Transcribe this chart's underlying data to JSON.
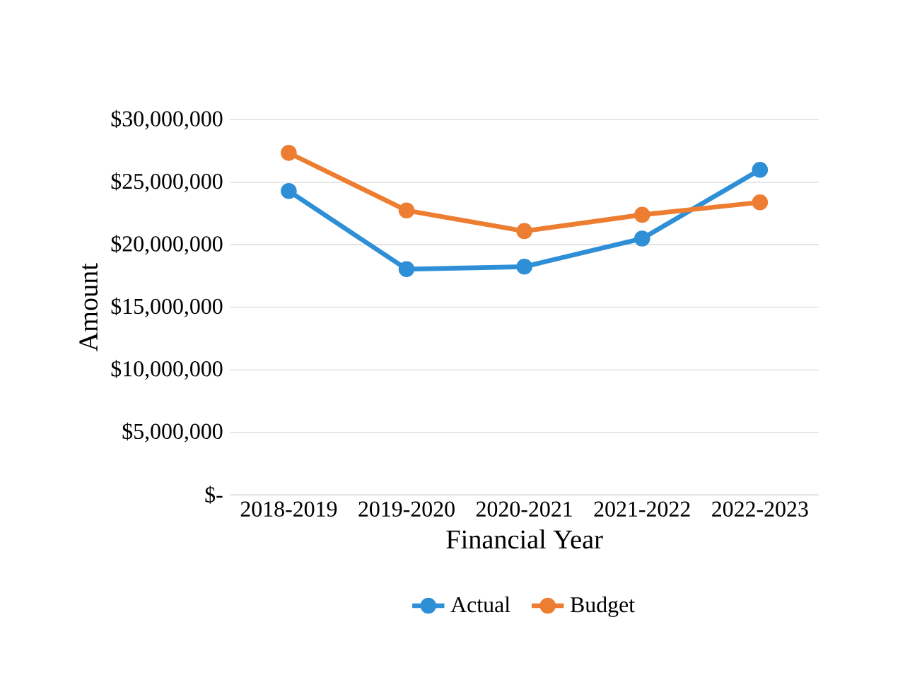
{
  "chart_data": {
    "type": "line",
    "xlabel": "Financial Year",
    "ylabel": "Amount",
    "categories": [
      "2018-2019",
      "2019-2020",
      "2020-2021",
      "2021-2022",
      "2022-2023"
    ],
    "series": [
      {
        "name": "Actual",
        "color": "#2e8fd6",
        "values": [
          24300000,
          18050000,
          18250000,
          20500000,
          26000000
        ]
      },
      {
        "name": "Budget",
        "color": "#ed7d31",
        "values": [
          27350000,
          22750000,
          21100000,
          22400000,
          23400000
        ]
      }
    ],
    "ylim": [
      0,
      30000000
    ],
    "yticks": [
      {
        "value": 0,
        "label": "$-"
      },
      {
        "value": 5000000,
        "label": "$5,000,000"
      },
      {
        "value": 10000000,
        "label": "$10,000,000"
      },
      {
        "value": 15000000,
        "label": "$15,000,000"
      },
      {
        "value": 20000000,
        "label": "$20,000,000"
      },
      {
        "value": 25000000,
        "label": "$25,000,000"
      },
      {
        "value": 30000000,
        "label": "$30,000,000"
      }
    ],
    "grid": "y",
    "legend": "bottom",
    "marker": "circle",
    "line_style": "solid"
  }
}
